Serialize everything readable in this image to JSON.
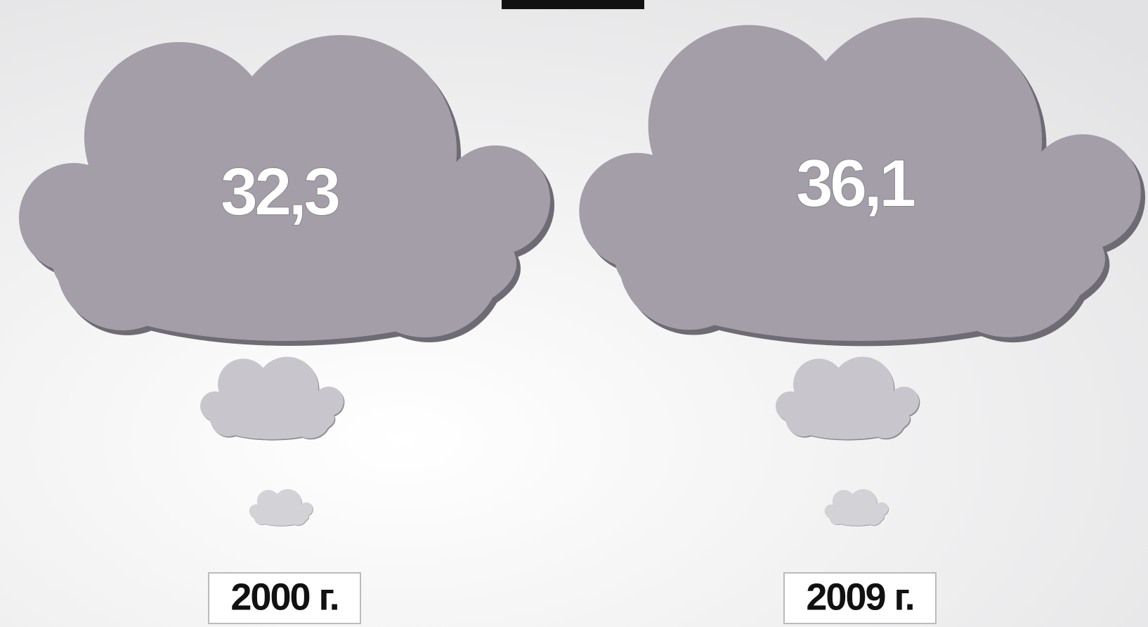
{
  "chart_data": {
    "type": "cloud",
    "categories": [
      "2000 г.",
      "2009 г."
    ],
    "values": [
      32.3,
      36.1
    ],
    "value_labels": [
      "32,3",
      "36,1"
    ],
    "color": "#a39ea8"
  }
}
